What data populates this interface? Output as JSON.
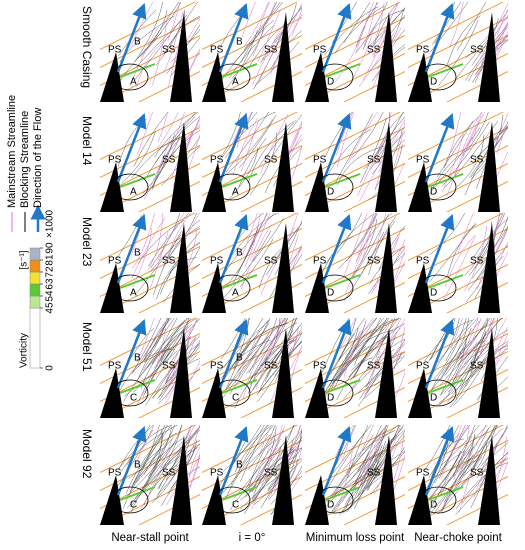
{
  "legend": {
    "items": [
      {
        "label": "Mainstream Streamline",
        "color": "#e070d0"
      },
      {
        "label": "Blocking Streamline",
        "color": "#000000"
      },
      {
        "label": "Direction of the Flow",
        "color": "#1f78c8"
      }
    ]
  },
  "colorbar": {
    "title": "Vorticity",
    "unit": "[s⁻¹]",
    "multiplier": "×1000",
    "lim": [
      0,
      90
    ],
    "ticks": [
      0,
      45,
      54,
      63,
      72,
      81,
      90
    ],
    "colors": [
      "#ffffff",
      "#b8e890",
      "#5cc834",
      "#f4e030",
      "#f08c1c",
      "#a8b4c8"
    ]
  },
  "rows": [
    {
      "label": "Smooth Casing",
      "panels": [
        [
          "PS",
          "B",
          "SS",
          "A"
        ],
        [
          "PS",
          "B",
          "SS",
          "A"
        ],
        [
          "PS",
          "SS",
          "D"
        ],
        [
          "PS",
          "SS",
          "D"
        ]
      ]
    },
    {
      "label": "Model 14",
      "panels": [
        [
          "PS",
          "SS",
          "A"
        ],
        [
          "PS",
          "SS",
          "A"
        ],
        [
          "PS",
          "SS",
          "D"
        ],
        [
          "PS",
          "SS",
          "D"
        ]
      ]
    },
    {
      "label": "Model 23",
      "panels": [
        [
          "PS",
          "B",
          "SS",
          "A"
        ],
        [
          "PS",
          "B",
          "SS",
          "A"
        ],
        [
          "PS",
          "SS",
          "D"
        ],
        [
          "PS",
          "SS",
          "D"
        ]
      ]
    },
    {
      "label": "Model 51",
      "panels": [
        [
          "PS",
          "B",
          "SS",
          "C"
        ],
        [
          "PS",
          "B",
          "SS",
          "C"
        ],
        [
          "PS",
          "SS",
          "D"
        ],
        [
          "PS",
          "SS",
          "D"
        ]
      ]
    },
    {
      "label": "Model 92",
      "panels": [
        [
          "PS",
          "B",
          "SS",
          "C"
        ],
        [
          "PS",
          "B",
          "SS",
          "C"
        ],
        [
          "SS",
          "D"
        ],
        [
          "PS",
          "SS",
          "D"
        ]
      ]
    }
  ],
  "columns": [
    "Near-stall point",
    "i = 0°",
    "Minimum loss point",
    "Near-choke point"
  ]
}
